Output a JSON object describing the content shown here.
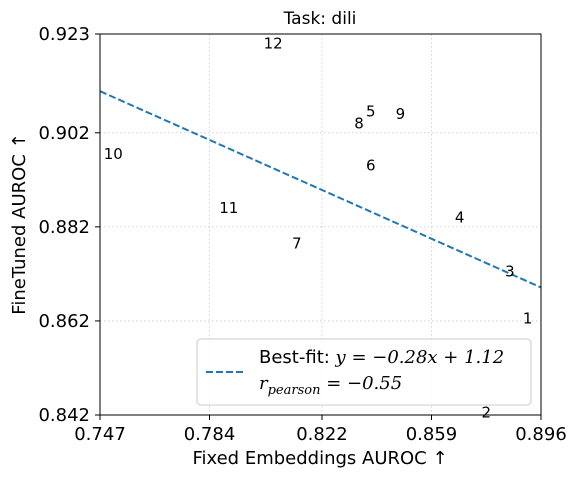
{
  "chart_data": {
    "type": "scatter",
    "title": "Task: dili",
    "xlabel": "Fixed Embeddings AUROC ↑",
    "ylabel": "FineTuned AUROC ↑",
    "xlim": [
      0.747,
      0.896
    ],
    "ylim": [
      0.842,
      0.923
    ],
    "xticks": [
      0.747,
      0.784,
      0.822,
      0.859,
      0.896
    ],
    "yticks": [
      0.842,
      0.862,
      0.882,
      0.902,
      0.923
    ],
    "xtick_labels": [
      "0.747",
      "0.784",
      "0.822",
      "0.859",
      "0.896"
    ],
    "ytick_labels": [
      "0.842",
      "0.862",
      "0.882",
      "0.902",
      "0.923"
    ],
    "grid": true,
    "points": [
      {
        "label": "1",
        "x": 0.8915,
        "y": 0.8625
      },
      {
        "label": "2",
        "x": 0.8775,
        "y": 0.8425
      },
      {
        "label": "3",
        "x": 0.8855,
        "y": 0.8725
      },
      {
        "label": "4",
        "x": 0.8685,
        "y": 0.884
      },
      {
        "label": "5",
        "x": 0.8385,
        "y": 0.9065
      },
      {
        "label": "6",
        "x": 0.8385,
        "y": 0.895
      },
      {
        "label": "7",
        "x": 0.8135,
        "y": 0.8785
      },
      {
        "label": "8",
        "x": 0.8345,
        "y": 0.904
      },
      {
        "label": "9",
        "x": 0.8485,
        "y": 0.906
      },
      {
        "label": "10",
        "x": 0.7515,
        "y": 0.8975
      },
      {
        "label": "11",
        "x": 0.7905,
        "y": 0.886
      },
      {
        "label": "12",
        "x": 0.8055,
        "y": 0.921
      }
    ],
    "fit_line": {
      "slope": -0.28,
      "intercept": 1.12,
      "style": "dashed",
      "color": "#1f77b4"
    },
    "legend": {
      "placement": "lower-right",
      "line1_prefix": "Best-fit: ",
      "line1_math": "y = −0.28x + 1.12",
      "line2_math_r": "r",
      "line2_math_sub": "pearson",
      "line2_math_rest": " = −0.55"
    }
  }
}
